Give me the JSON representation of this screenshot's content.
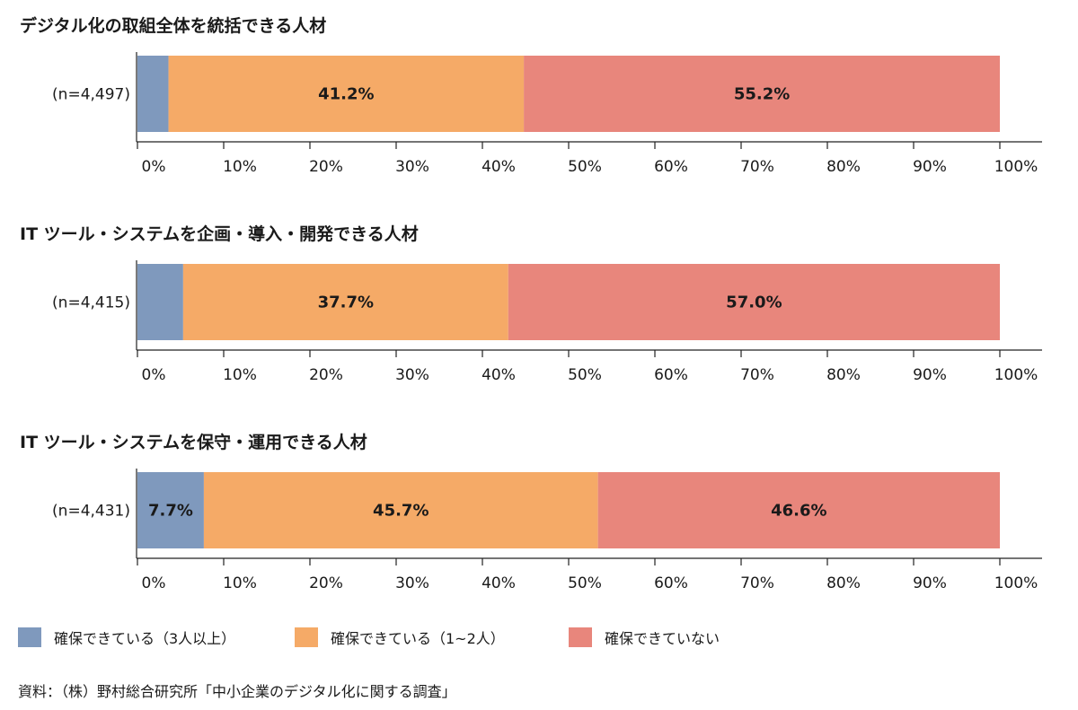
{
  "colors": {
    "series1": "#7f99bd",
    "series2": "#f5aa67",
    "series3": "#e8867c",
    "axis": "#222222",
    "text": "#1a1a1a"
  },
  "chart_data": [
    {
      "type": "bar",
      "orientation": "horizontal-stacked",
      "title": "デジタル化の取組全体を統括できる人材",
      "categories": [
        "(n=4,497)"
      ],
      "series": [
        {
          "name": "確保できている（3人以上）",
          "values": [
            3.6
          ],
          "label": ""
        },
        {
          "name": "確保できている（1~2人）",
          "values": [
            41.2
          ],
          "label": "41.2%"
        },
        {
          "name": "確保できていない",
          "values": [
            55.2
          ],
          "label": "55.2%"
        }
      ],
      "xlim": [
        0,
        100
      ],
      "ticks": [
        "0%",
        "10%",
        "20%",
        "30%",
        "40%",
        "50%",
        "60%",
        "70%",
        "80%",
        "90%",
        "100%"
      ]
    },
    {
      "type": "bar",
      "orientation": "horizontal-stacked",
      "title": "IT ツール・システムを企画・導入・開発できる人材",
      "categories": [
        "(n=4,415)"
      ],
      "series": [
        {
          "name": "確保できている（3人以上）",
          "values": [
            5.3
          ],
          "label": ""
        },
        {
          "name": "確保できている（1~2人）",
          "values": [
            37.7
          ],
          "label": "37.7%"
        },
        {
          "name": "確保できていない",
          "values": [
            57.0
          ],
          "label": "57.0%"
        }
      ],
      "xlim": [
        0,
        100
      ],
      "ticks": [
        "0%",
        "10%",
        "20%",
        "30%",
        "40%",
        "50%",
        "60%",
        "70%",
        "80%",
        "90%",
        "100%"
      ]
    },
    {
      "type": "bar",
      "orientation": "horizontal-stacked",
      "title": "IT ツール・システムを保守・運用できる人材",
      "categories": [
        "(n=4,431)"
      ],
      "series": [
        {
          "name": "確保できている（3人以上）",
          "values": [
            7.7
          ],
          "label": "7.7%"
        },
        {
          "name": "確保できている（1~2人）",
          "values": [
            45.7
          ],
          "label": "45.7%"
        },
        {
          "name": "確保できていない",
          "values": [
            46.6
          ],
          "label": "46.6%"
        }
      ],
      "xlim": [
        0,
        100
      ],
      "ticks": [
        "0%",
        "10%",
        "20%",
        "30%",
        "40%",
        "50%",
        "60%",
        "70%",
        "80%",
        "90%",
        "100%"
      ]
    }
  ],
  "legend": {
    "items": [
      {
        "label": "確保できている（3人以上）"
      },
      {
        "label": "確保できている（1~2人）"
      },
      {
        "label": "確保できていない"
      }
    ]
  },
  "source": "資料：（株）野村総合研究所「中小企業のデジタル化に関する調査」"
}
